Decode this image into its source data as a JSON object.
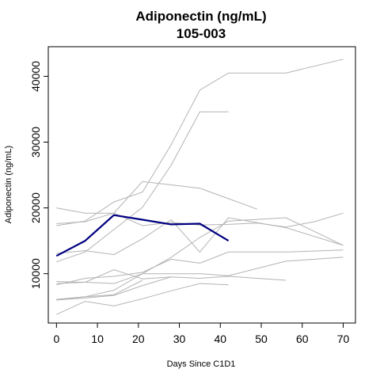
{
  "chart_data": {
    "type": "line",
    "title": "Adiponectin (ng/mL)",
    "subtitle": "105-003",
    "xlabel": "Days Since C1D1",
    "ylabel": "Adiponectin (ng/mL)",
    "xlim": [
      -2,
      73
    ],
    "ylim": [
      2500,
      44500
    ],
    "x_ticks": [
      0,
      10,
      20,
      30,
      40,
      50,
      60,
      70
    ],
    "y_ticks": [
      10000,
      20000,
      30000,
      40000
    ],
    "grid": false,
    "colors": {
      "background_series": "#b3b3b3",
      "highlight": "#000080",
      "axis": "#000000"
    },
    "highlight": {
      "x": [
        0,
        7,
        14,
        21,
        28,
        35,
        42
      ],
      "y": [
        12700,
        15000,
        18900,
        18200,
        17500,
        17600,
        15000
      ]
    },
    "background_series": [
      {
        "x": [
          0,
          7,
          14,
          21,
          28,
          35,
          42
        ],
        "y": [
          17300,
          18000,
          20900,
          22400,
          29600,
          37900,
          40500
        ]
      },
      {
        "x": [
          42,
          56,
          70
        ],
        "y": [
          40500,
          40500,
          42600
        ]
      },
      {
        "x": [
          0,
          7,
          14,
          21,
          28,
          35,
          42
        ],
        "y": [
          11800,
          13300,
          16700,
          20100,
          26500,
          34600,
          34600
        ]
      },
      {
        "x": [
          0,
          7,
          14,
          21,
          28,
          35,
          42,
          49
        ],
        "y": [
          20000,
          19200,
          19200,
          24000,
          23500,
          23000,
          21400,
          19800
        ]
      },
      {
        "x": [
          0,
          7,
          14,
          21,
          28,
          35,
          42,
          49,
          56,
          63,
          70
        ],
        "y": [
          17600,
          17900,
          19200,
          17300,
          17800,
          17400,
          17500,
          17700,
          17100,
          17900,
          19200
        ]
      },
      {
        "x": [
          0,
          7,
          14,
          21,
          28,
          35,
          42,
          56,
          70
        ],
        "y": [
          13100,
          13500,
          12900,
          15300,
          18200,
          13300,
          18500,
          17000,
          14300
        ]
      },
      {
        "x": [
          0,
          7,
          14,
          21,
          28,
          35,
          42,
          56,
          70
        ],
        "y": [
          6000,
          6500,
          7500,
          10000,
          12500,
          15500,
          18000,
          18500,
          14300
        ]
      },
      {
        "x": [
          0,
          7,
          14,
          21,
          28,
          35,
          42,
          56,
          70
        ],
        "y": [
          8300,
          9300,
          9600,
          10200,
          12200,
          11600,
          13300,
          13300,
          13600
        ]
      },
      {
        "x": [
          0,
          7,
          14,
          21,
          28,
          35,
          42,
          56,
          70
        ],
        "y": [
          8800,
          8700,
          8500,
          10000,
          10000,
          10000,
          9700,
          11900,
          12500
        ]
      },
      {
        "x": [
          0,
          7,
          14,
          21,
          28,
          35,
          42,
          56
        ],
        "y": [
          6000,
          6300,
          6700,
          8200,
          9500,
          9300,
          9600,
          9000
        ]
      },
      {
        "x": [
          0,
          7,
          14,
          21,
          28,
          35,
          42
        ],
        "y": [
          3800,
          5800,
          5100,
          6200,
          7400,
          8500,
          8300
        ]
      },
      {
        "x": [
          0,
          7,
          14,
          21,
          28
        ],
        "y": [
          8500,
          8700,
          10600,
          9200,
          9500
        ]
      },
      {
        "x": [
          0,
          7,
          14,
          21
        ],
        "y": [
          6100,
          6500,
          6800,
          9000
        ]
      }
    ]
  }
}
